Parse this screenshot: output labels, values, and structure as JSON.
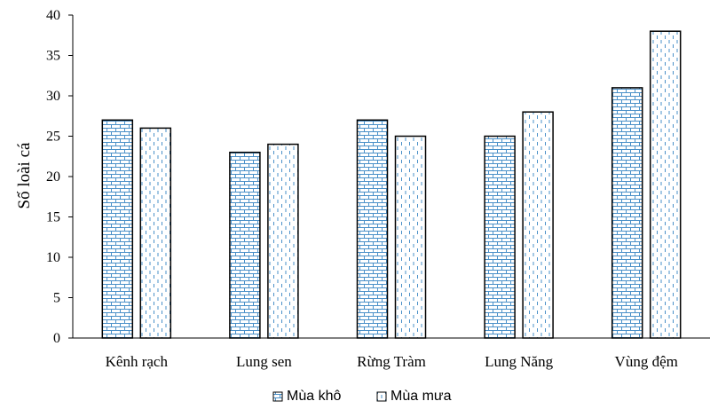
{
  "chart_data": {
    "type": "bar",
    "title": "",
    "xlabel": "",
    "ylabel": "Số loài cá",
    "categories": [
      "Kênh rạch",
      "Lung sen",
      "Rừng Tràm",
      "Lung Năng",
      "Vùng đệm"
    ],
    "series": [
      {
        "name": "Mùa khô",
        "values": [
          27,
          23,
          27,
          25,
          31
        ],
        "pattern": "brick",
        "color": "#4a90c8"
      },
      {
        "name": "Mùa mưa",
        "values": [
          26,
          24,
          25,
          28,
          38
        ],
        "pattern": "dashed-vertical",
        "color": "#4a90c8"
      }
    ],
    "ylim": [
      0,
      40
    ],
    "yticks": [
      0,
      5,
      10,
      15,
      20,
      25,
      30,
      35,
      40
    ],
    "grid": false,
    "legend_position": "bottom-center",
    "bar_outline_color": "#000000"
  }
}
